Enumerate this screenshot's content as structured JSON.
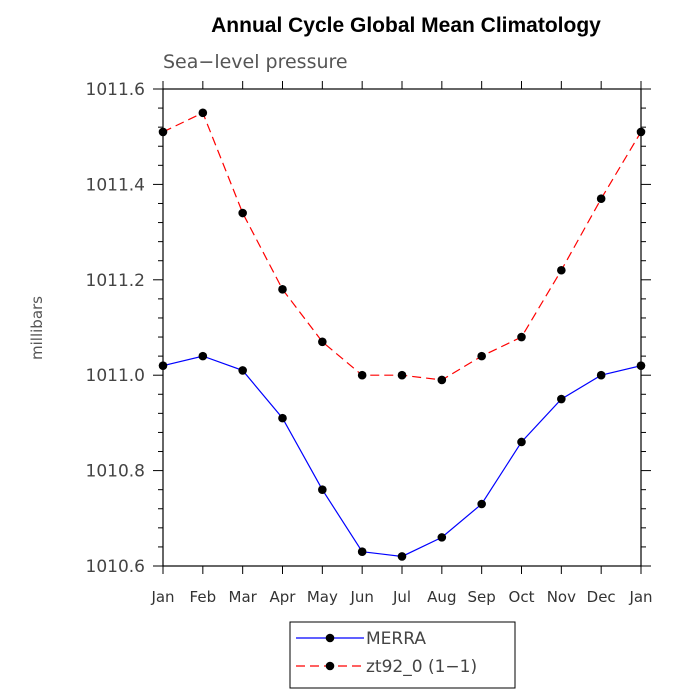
{
  "chart_data": {
    "type": "line",
    "title": "Annual Cycle Global Mean Climatology",
    "subtitle": "Sea−level pressure",
    "xlabel": "",
    "ylabel": "millibars",
    "categories": [
      "Jan",
      "Feb",
      "Mar",
      "Apr",
      "May",
      "Jun",
      "Jul",
      "Aug",
      "Sep",
      "Oct",
      "Nov",
      "Dec",
      "Jan"
    ],
    "ylim": [
      1010.6,
      1011.6
    ],
    "yticks": [
      "1010.6",
      "1010.8",
      "1011.0",
      "1011.2",
      "1011.4",
      "1011.6"
    ],
    "ytick_values": [
      1010.6,
      1010.8,
      1011.0,
      1011.2,
      1011.4,
      1011.6
    ],
    "grid": false,
    "legend_position": "bottom",
    "series": [
      {
        "name": "MERRA",
        "color": "#0000ff",
        "dash": "solid",
        "values": [
          1011.02,
          1011.04,
          1011.01,
          1010.91,
          1010.76,
          1010.63,
          1010.62,
          1010.66,
          1010.73,
          1010.86,
          1010.95,
          1011.0,
          1011.02
        ]
      },
      {
        "name": "zt92_0 (1−1)",
        "color": "#ff0000",
        "dash": "dashed",
        "values": [
          1011.51,
          1011.55,
          1011.34,
          1011.18,
          1011.07,
          1011.0,
          1011.0,
          1010.99,
          1011.04,
          1011.08,
          1011.22,
          1011.37,
          1011.51
        ]
      }
    ]
  }
}
